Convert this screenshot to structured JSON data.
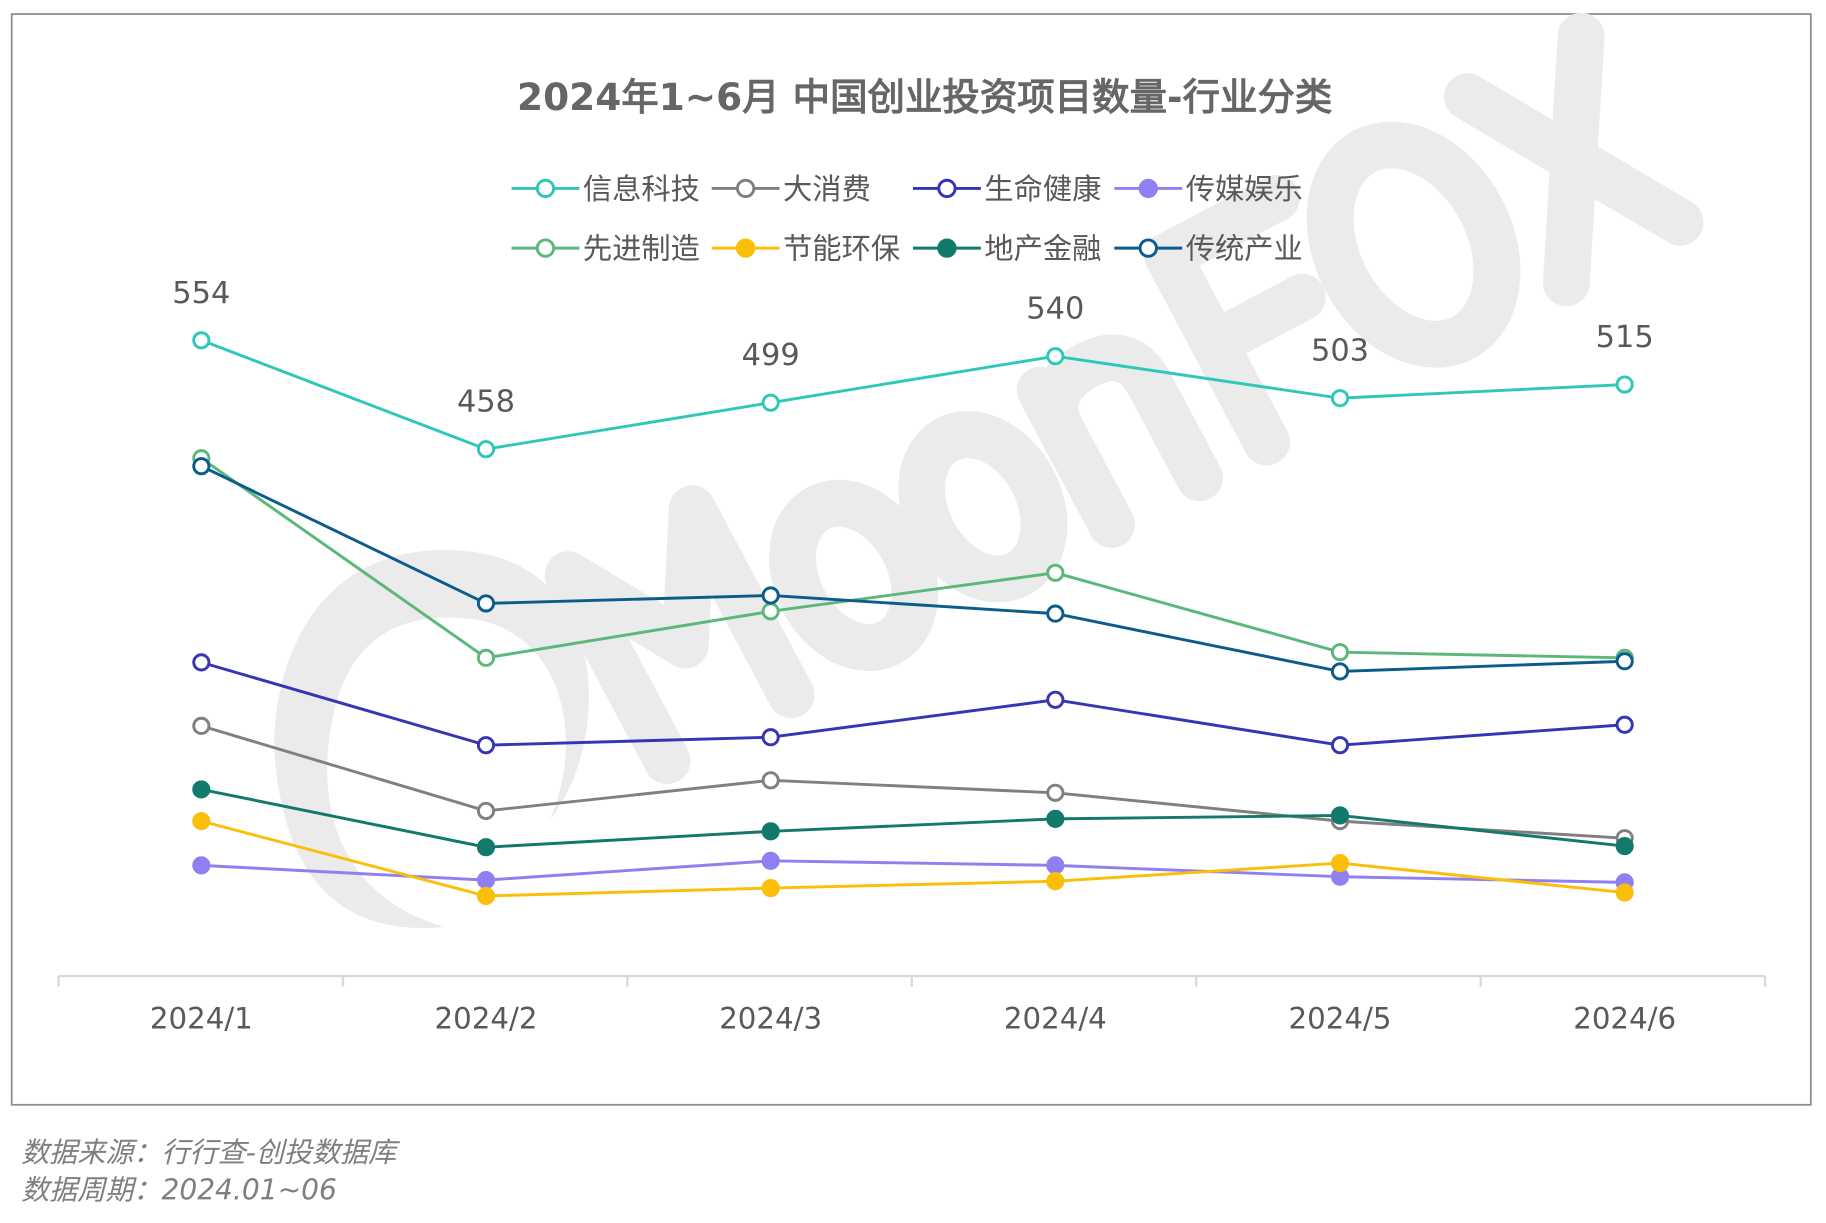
{
  "watermark": "MoonFox",
  "footer": {
    "source": "数据来源：行行查-创投数据库",
    "period": "数据周期：2024.01~06"
  },
  "chart_data": {
    "type": "line",
    "title": "2024年1~6月 中国创业投资项目数量-行业分类",
    "categories": [
      "2024/1",
      "2024/2",
      "2024/3",
      "2024/4",
      "2024/5",
      "2024/6"
    ],
    "legend_position": "top",
    "grid": false,
    "y_axis_visible": false,
    "ylim": [
      0,
      600
    ],
    "series": [
      {
        "name": "信息科技",
        "color": "#2ec8b8",
        "marker": "hollow",
        "values": [
          554,
          458,
          499,
          540,
          503,
          515
        ],
        "data_labels": true
      },
      {
        "name": "大消费",
        "color": "#808080",
        "marker": "hollow",
        "values": [
          214,
          139,
          166,
          155,
          130,
          115
        ]
      },
      {
        "name": "生命健康",
        "color": "#3535b5",
        "marker": "hollow",
        "values": [
          270,
          197,
          204,
          237,
          197,
          215
        ]
      },
      {
        "name": "传媒娱乐",
        "color": "#8f80f2",
        "marker": "filled",
        "values": [
          91,
          78,
          95,
          91,
          81,
          76
        ]
      },
      {
        "name": "先进制造",
        "color": "#5cb87a",
        "marker": "hollow",
        "values": [
          450,
          274,
          315,
          349,
          279,
          274
        ]
      },
      {
        "name": "节能环保",
        "color": "#fbbf0a",
        "marker": "filled",
        "values": [
          130,
          64,
          71,
          77,
          93,
          67
        ]
      },
      {
        "name": "地产金融",
        "color": "#127a6a",
        "marker": "filled",
        "values": [
          158,
          107,
          121,
          132,
          135,
          108
        ]
      },
      {
        "name": "传统产业",
        "color": "#0b5c8c",
        "marker": "hollow",
        "values": [
          443,
          322,
          329,
          313,
          262,
          271
        ]
      }
    ]
  }
}
